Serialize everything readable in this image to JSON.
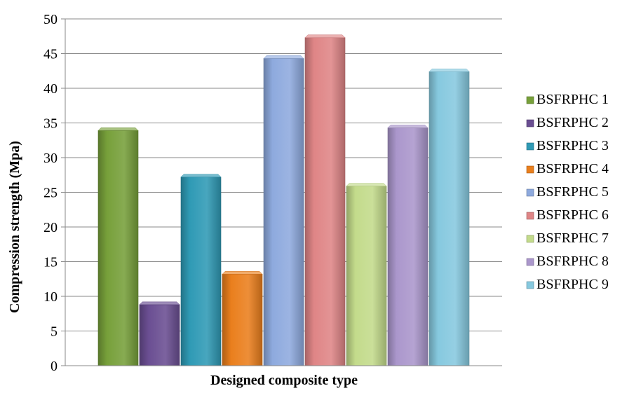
{
  "chart_data": {
    "type": "bar",
    "title": "",
    "xlabel": "Designed composite type",
    "ylabel": "Compression strength (Mpa)",
    "ylim": [
      0,
      50
    ],
    "yticks": [
      0,
      5,
      10,
      15,
      20,
      25,
      30,
      35,
      40,
      45,
      50
    ],
    "grid": true,
    "legend_position": "right",
    "series": [
      {
        "name": "BSFRPHC 1",
        "value": 33.9,
        "color": "#77a03a"
      },
      {
        "name": "BSFRPHC 2",
        "value": 8.8,
        "color": "#6a4e92"
      },
      {
        "name": "BSFRPHC 3",
        "value": 27.2,
        "color": "#2f9ab5"
      },
      {
        "name": "BSFRPHC 4",
        "value": 13.2,
        "color": "#ea7f1d"
      },
      {
        "name": "BSFRPHC 5",
        "value": 44.3,
        "color": "#8eaade"
      },
      {
        "name": "BSFRPHC 6",
        "value": 47.3,
        "color": "#df8586"
      },
      {
        "name": "BSFRPHC 7",
        "value": 25.9,
        "color": "#c3db8b"
      },
      {
        "name": "BSFRPHC 8",
        "value": 34.3,
        "color": "#ab97cc"
      },
      {
        "name": "BSFRPHC 9",
        "value": 42.4,
        "color": "#86c9df"
      }
    ]
  }
}
